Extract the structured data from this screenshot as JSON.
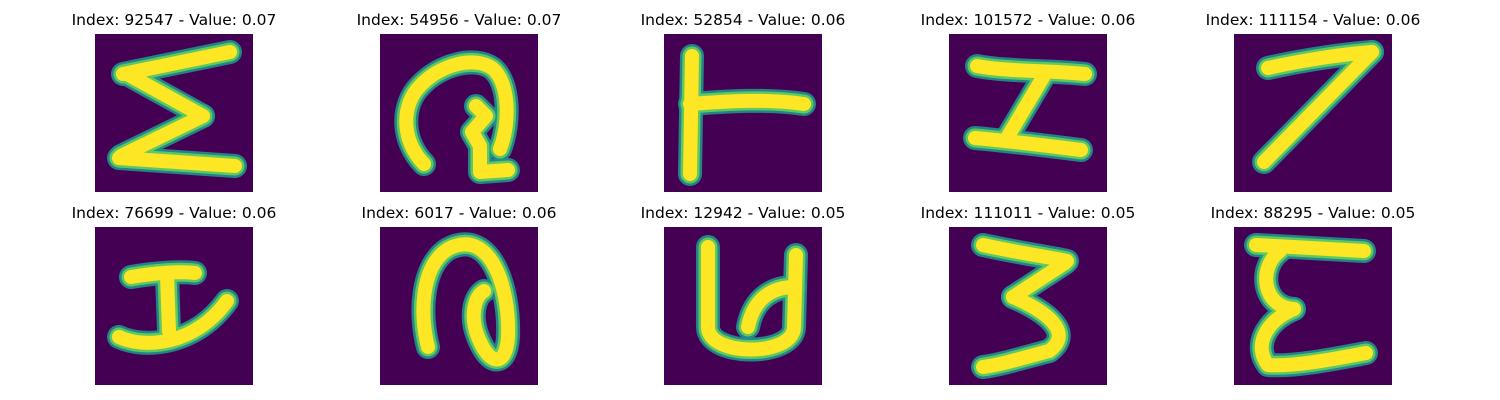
{
  "colors": {
    "background": "#440154",
    "stroke_core": "#fde725",
    "stroke_mid": "#5ec962",
    "stroke_edge": "#21918c"
  },
  "panels": [
    {
      "title": "Index: 92547 - Value: 0.07",
      "glyph": "sigma"
    },
    {
      "title": "Index: 54956 - Value: 0.07",
      "glyph": "curl"
    },
    {
      "title": "Index: 52854 - Value: 0.06",
      "glyph": "tee"
    },
    {
      "title": "Index: 101572 - Value: 0.06",
      "glyph": "i-beam"
    },
    {
      "title": "Index: 111154 - Value: 0.06",
      "glyph": "seven"
    },
    {
      "title": "Index: 76699 - Value: 0.06",
      "glyph": "i-curved"
    },
    {
      "title": "Index: 6017 - Value: 0.06",
      "glyph": "loop"
    },
    {
      "title": "Index: 12942 - Value: 0.05",
      "glyph": "u-shape"
    },
    {
      "title": "Index: 111011 - Value: 0.05",
      "glyph": "three"
    },
    {
      "title": "Index: 88295 - Value: 0.05",
      "glyph": "epsilon"
    }
  ]
}
